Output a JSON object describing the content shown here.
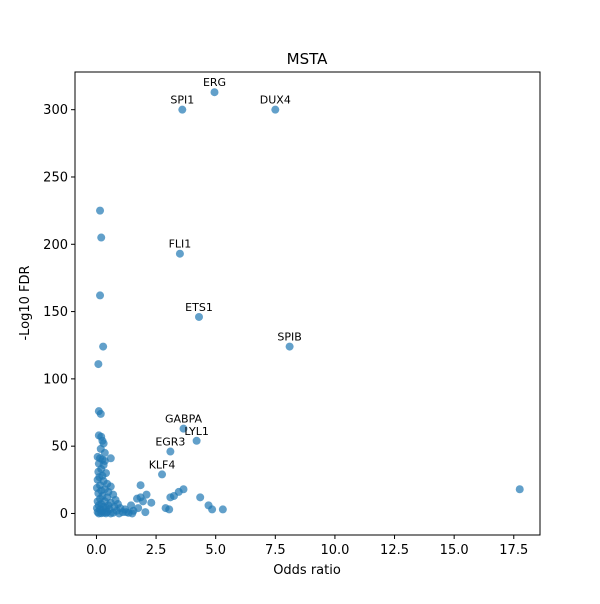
{
  "chart_data": {
    "type": "scatter",
    "title": "MSTA",
    "xlabel": "Odds ratio",
    "ylabel": "-Log10 FDR",
    "xlim": [
      -0.9,
      18.6
    ],
    "ylim": [
      -16,
      328
    ],
    "xticks": [
      "0.0",
      "2.5",
      "5.0",
      "7.5",
      "10.0",
      "12.5",
      "15.0",
      "17.5"
    ],
    "xtick_values": [
      0,
      2.5,
      5,
      7.5,
      10,
      12.5,
      15,
      17.5
    ],
    "yticks": [
      "0",
      "50",
      "100",
      "150",
      "200",
      "250",
      "300"
    ],
    "ytick_values": [
      0,
      50,
      100,
      150,
      200,
      250,
      300
    ],
    "grid": false,
    "point_color": "#1f77b4",
    "point_alpha": 0.7,
    "points": [
      {
        "x": 4.95,
        "y": 313,
        "label": "ERG"
      },
      {
        "x": 3.6,
        "y": 300,
        "label": "SPI1"
      },
      {
        "x": 7.5,
        "y": 300,
        "label": "DUX4"
      },
      {
        "x": 3.5,
        "y": 193,
        "label": "FLI1"
      },
      {
        "x": 4.3,
        "y": 146,
        "label": "ETS1"
      },
      {
        "x": 8.1,
        "y": 124,
        "label": "SPIB"
      },
      {
        "x": 3.65,
        "y": 63,
        "label": "GABPA"
      },
      {
        "x": 4.2,
        "y": 54,
        "label": "LYL1"
      },
      {
        "x": 3.1,
        "y": 46,
        "label": "EGR3"
      },
      {
        "x": 2.75,
        "y": 29,
        "label": "KLF4"
      },
      {
        "x": 17.75,
        "y": 18
      },
      {
        "x": 0.15,
        "y": 225
      },
      {
        "x": 0.2,
        "y": 205
      },
      {
        "x": 0.15,
        "y": 162
      },
      {
        "x": 0.28,
        "y": 124
      },
      {
        "x": 0.08,
        "y": 111
      },
      {
        "x": 0.1,
        "y": 76
      },
      {
        "x": 0.18,
        "y": 74
      },
      {
        "x": 0.1,
        "y": 58
      },
      {
        "x": 0.2,
        "y": 57
      },
      {
        "x": 0.25,
        "y": 54
      },
      {
        "x": 0.3,
        "y": 52
      },
      {
        "x": 0.18,
        "y": 48
      },
      {
        "x": 0.35,
        "y": 45
      },
      {
        "x": 0.05,
        "y": 42
      },
      {
        "x": 0.15,
        "y": 41
      },
      {
        "x": 0.25,
        "y": 40
      },
      {
        "x": 0.35,
        "y": 39
      },
      {
        "x": 0.6,
        "y": 41
      },
      {
        "x": 0.1,
        "y": 37
      },
      {
        "x": 0.3,
        "y": 36
      },
      {
        "x": 0.2,
        "y": 33
      },
      {
        "x": 0.08,
        "y": 31
      },
      {
        "x": 0.4,
        "y": 30
      },
      {
        "x": 0.25,
        "y": 28
      },
      {
        "x": 0.12,
        "y": 27
      },
      {
        "x": 0.05,
        "y": 25
      },
      {
        "x": 0.3,
        "y": 24
      },
      {
        "x": 0.45,
        "y": 22
      },
      {
        "x": 0.15,
        "y": 21
      },
      {
        "x": 0.6,
        "y": 20
      },
      {
        "x": 0.02,
        "y": 19
      },
      {
        "x": 0.35,
        "y": 18
      },
      {
        "x": 0.2,
        "y": 17
      },
      {
        "x": 0.5,
        "y": 16
      },
      {
        "x": 0.08,
        "y": 15
      },
      {
        "x": 0.7,
        "y": 14
      },
      {
        "x": 0.25,
        "y": 13
      },
      {
        "x": 0.45,
        "y": 12
      },
      {
        "x": 0.15,
        "y": 11
      },
      {
        "x": 0.8,
        "y": 10
      },
      {
        "x": 0.05,
        "y": 9
      },
      {
        "x": 0.35,
        "y": 9
      },
      {
        "x": 0.6,
        "y": 8
      },
      {
        "x": 0.2,
        "y": 7
      },
      {
        "x": 0.9,
        "y": 7
      },
      {
        "x": 0.1,
        "y": 6
      },
      {
        "x": 0.5,
        "y": 6
      },
      {
        "x": 0.3,
        "y": 5
      },
      {
        "x": 0.75,
        "y": 5
      },
      {
        "x": 0.02,
        "y": 4
      },
      {
        "x": 0.4,
        "y": 4
      },
      {
        "x": 1.0,
        "y": 4
      },
      {
        "x": 0.15,
        "y": 3
      },
      {
        "x": 0.55,
        "y": 3
      },
      {
        "x": 1.2,
        "y": 3
      },
      {
        "x": 0.25,
        "y": 2
      },
      {
        "x": 0.85,
        "y": 2
      },
      {
        "x": 0.05,
        "y": 1
      },
      {
        "x": 0.45,
        "y": 1
      },
      {
        "x": 1.1,
        "y": 1
      },
      {
        "x": 0.3,
        "y": 0.5
      },
      {
        "x": 0.7,
        "y": 0.5
      },
      {
        "x": 1.35,
        "y": 0.5
      },
      {
        "x": 0.1,
        "y": 0
      },
      {
        "x": 0.6,
        "y": 0
      },
      {
        "x": 0.95,
        "y": 0
      },
      {
        "x": 1.5,
        "y": 0
      },
      {
        "x": 0.2,
        "y": 0.2
      },
      {
        "x": 0.4,
        "y": 0.1
      },
      {
        "x": 1.25,
        "y": 1
      },
      {
        "x": 1.45,
        "y": 6
      },
      {
        "x": 1.55,
        "y": 2
      },
      {
        "x": 1.7,
        "y": 11
      },
      {
        "x": 1.85,
        "y": 21
      },
      {
        "x": 1.85,
        "y": 12
      },
      {
        "x": 1.95,
        "y": 9
      },
      {
        "x": 1.75,
        "y": 4
      },
      {
        "x": 2.1,
        "y": 14
      },
      {
        "x": 2.05,
        "y": 1
      },
      {
        "x": 2.3,
        "y": 8
      },
      {
        "x": 2.9,
        "y": 4
      },
      {
        "x": 3.05,
        "y": 3
      },
      {
        "x": 3.1,
        "y": 12
      },
      {
        "x": 3.25,
        "y": 13
      },
      {
        "x": 3.45,
        "y": 16
      },
      {
        "x": 3.65,
        "y": 18
      },
      {
        "x": 4.35,
        "y": 12
      },
      {
        "x": 4.7,
        "y": 6
      },
      {
        "x": 4.85,
        "y": 3
      },
      {
        "x": 5.3,
        "y": 3
      }
    ]
  }
}
